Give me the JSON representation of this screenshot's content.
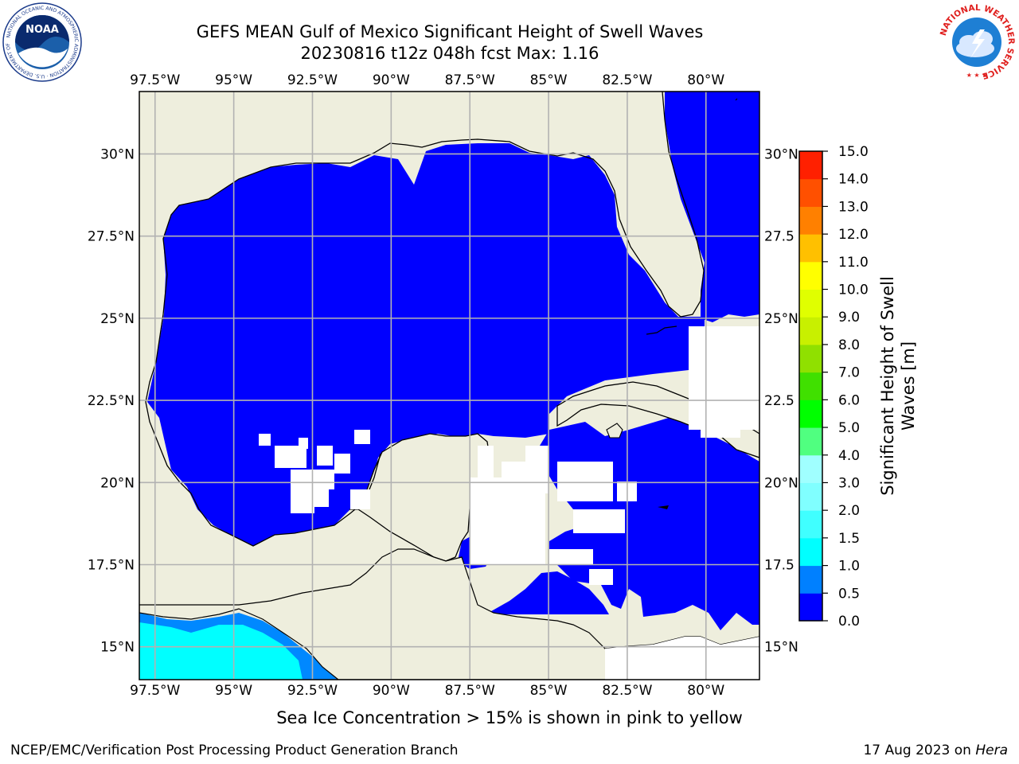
{
  "title": {
    "line1": "GEFS MEAN Gulf of Mexico Significant Height of Swell Waves",
    "line2": "20230816 t12z 048h fcst   Max: 1.16"
  },
  "map": {
    "lon_ticks": [
      "97.5°W",
      "95°W",
      "92.5°W",
      "90°W",
      "87.5°W",
      "85°W",
      "82.5°W",
      "80°W"
    ],
    "lat_ticks_left": [
      "30°N",
      "27.5°N",
      "25°N",
      "22.5°N",
      "20°N",
      "17.5°N",
      "15°N"
    ],
    "lat_ticks_right": [
      "30°N",
      "27.5",
      "25°N",
      "22.5",
      "20°N",
      "17.5",
      "15°N"
    ],
    "lon_range": [
      -98,
      -78.3
    ],
    "lat_range": [
      14,
      31.9
    ],
    "grid": true,
    "colors": {
      "land": "#eeeedd",
      "ocean_low": "#0000ff",
      "ocean_mid": "#00ffff",
      "ocean_edge": "#0088ff",
      "no_data": "#ffffff",
      "grid": "#b2b2b2"
    }
  },
  "colorbar": {
    "label_line1": "Significant Height of Swell",
    "label_line2": "Waves [m]",
    "ticks": [
      "0.0",
      "0.5",
      "1.0",
      "1.5",
      "2.0",
      "3.0",
      "4.0",
      "5.0",
      "6.0",
      "7.0",
      "8.0",
      "9.0",
      "10.0",
      "11.0",
      "12.0",
      "13.0",
      "14.0",
      "15.0"
    ],
    "colors": [
      "#0000ff",
      "#0080ff",
      "#00ffff",
      "#40ffff",
      "#80ffff",
      "#a0ffff",
      "#50ff80",
      "#00ff00",
      "#40e000",
      "#90e000",
      "#c8f000",
      "#e0ff00",
      "#ffff00",
      "#ffc000",
      "#ff8000",
      "#ff5000",
      "#ff2000",
      "#ff0000"
    ]
  },
  "footnote": "Sea Ice Concentration > 15% is shown in pink to yellow",
  "footer": {
    "left": "NCEP/EMC/Verification Post Processing Product Generation Branch",
    "right_date": "17 Aug 2023 on ",
    "right_host": "Hera"
  },
  "logos": {
    "noaa_text": "NOAA",
    "noaa_ring_text": "NATIONAL OCEANIC AND ATMOSPHERIC ADMINISTRATION · U.S. DEPARTMENT OF COMMERCE",
    "nws_ring_text": "NATIONAL WEATHER SERVICE"
  }
}
